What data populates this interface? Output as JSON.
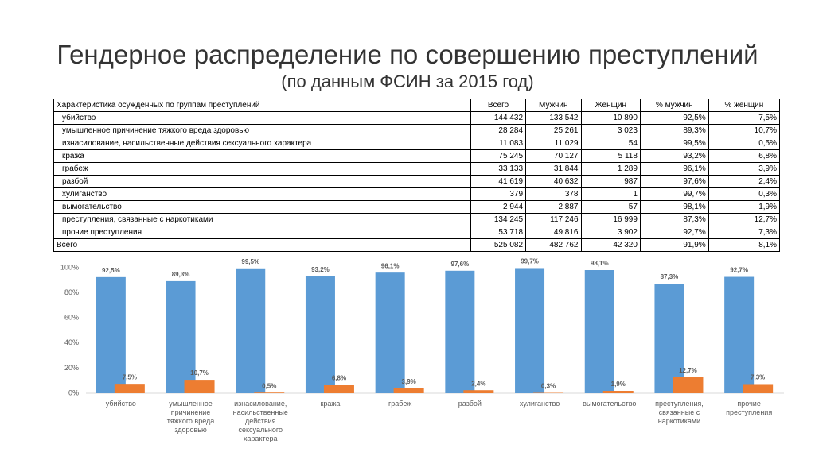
{
  "title": "Гендерное распределение по совершению преступлений",
  "subtitle": "(по данным ФСИН за 2015 год)",
  "table": {
    "header": [
      "Характеристика осужденных по группам преступлений",
      "Всего",
      "Мужчин",
      "Женщин",
      "% мужчин",
      "% женщин"
    ],
    "rows": [
      [
        "убийство",
        "144 432",
        "133 542",
        "10 890",
        "92,5%",
        "7,5%"
      ],
      [
        "умышленное причинение тяжкого вреда здоровью",
        "28 284",
        "25 261",
        "3 023",
        "89,3%",
        "10,7%"
      ],
      [
        "изнасилование, насильственные действия сексуального характера",
        "11 083",
        "11 029",
        "54",
        "99,5%",
        "0,5%"
      ],
      [
        "кража",
        "75 245",
        "70 127",
        "5 118",
        "93,2%",
        "6,8%"
      ],
      [
        "грабеж",
        "33 133",
        "31 844",
        "1 289",
        "96,1%",
        "3,9%"
      ],
      [
        "разбой",
        "41 619",
        "40 632",
        "987",
        "97,6%",
        "2,4%"
      ],
      [
        "хулиганство",
        "379",
        "378",
        "1",
        "99,7%",
        "0,3%"
      ],
      [
        "вымогательство",
        "2 944",
        "2 887",
        "57",
        "98,1%",
        "1,9%"
      ],
      [
        "преступления, связанные с наркотиками",
        "134 245",
        "117 246",
        "16 999",
        "87,3%",
        "12,7%"
      ],
      [
        "прочие преступления",
        "53 718",
        "49 816",
        "3 902",
        "92,7%",
        "7,3%"
      ]
    ],
    "total": [
      "Всего",
      "525 082",
      "482 762",
      "42 320",
      "91,9%",
      "8,1%"
    ]
  },
  "chart_data": {
    "type": "bar",
    "categories": [
      "убийство",
      "умышленное причинение тяжкого вреда здоровью",
      "изнасилование, насильственные действия сексуального характера",
      "кража",
      "грабеж",
      "разбой",
      "хулиганство",
      "вымогательство",
      "преступления, связанные с наркотиками",
      "прочие преступления"
    ],
    "series": [
      {
        "color": "#5b9bd5",
        "values": [
          92.5,
          89.3,
          99.5,
          93.2,
          96.1,
          97.6,
          99.7,
          98.1,
          87.3,
          92.7
        ],
        "value_labels": [
          "92,5%",
          "89,3%",
          "99,5%",
          "93,2%",
          "96,1%",
          "97,6%",
          "99,7%",
          "98,1%",
          "87,3%",
          "92,7%"
        ]
      },
      {
        "color": "#ed7d31",
        "values": [
          7.5,
          10.7,
          0.5,
          6.8,
          3.9,
          2.4,
          0.3,
          1.9,
          12.7,
          7.3
        ],
        "value_labels": [
          "7,5%",
          "10,7%",
          "0,5%",
          "6,8%",
          "3,9%",
          "2,4%",
          "0,3%",
          "1,9%",
          "12,7%",
          "7,3%"
        ]
      }
    ],
    "ylim": [
      0,
      100
    ],
    "yticks": [
      {
        "value": 0,
        "label": "0%"
      },
      {
        "value": 20,
        "label": "20%"
      },
      {
        "value": 40,
        "label": "40%"
      },
      {
        "value": 60,
        "label": "60%"
      },
      {
        "value": 80,
        "label": "80%"
      },
      {
        "value": 100,
        "label": "100%"
      }
    ],
    "grid": false
  }
}
